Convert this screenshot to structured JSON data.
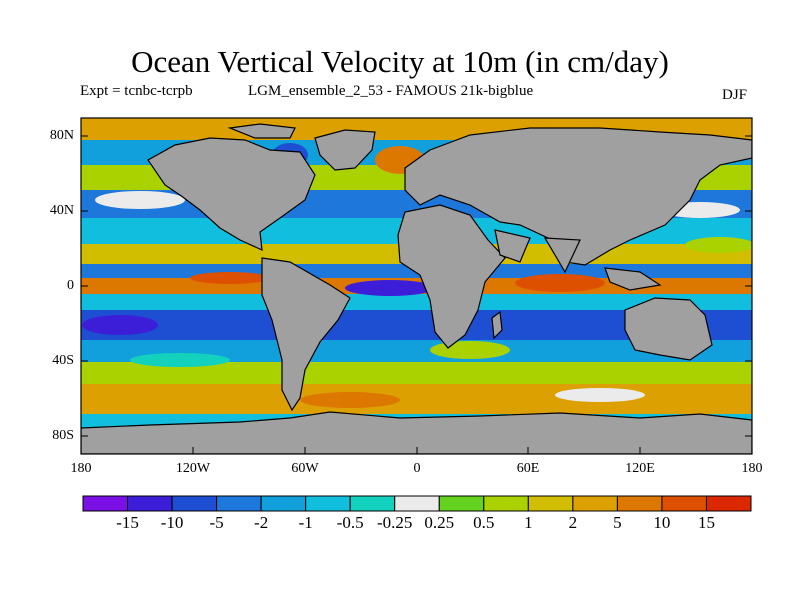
{
  "figure": {
    "title": "Ocean Vertical Velocity at 10m (in cm/day)",
    "expt": "Expt = tcnbc-tcrpb",
    "experiment_name": "LGM_ensemble_2_53 - FAMOUS 21k-bigblue",
    "season": "DJF"
  },
  "map": {
    "land_color": "#a0a0a0",
    "lat_ticks": [
      "80N",
      "40N",
      "0",
      "40S",
      "80S"
    ],
    "lon_ticks": [
      "180",
      "120W",
      "60W",
      "0",
      "60E",
      "120E",
      "180"
    ]
  },
  "colorbar": {
    "labels": [
      "-15",
      "-10",
      "-5",
      "-2",
      "-1",
      "-0.5",
      "-0.25",
      "0.25",
      "0.5",
      "1",
      "2",
      "5",
      "10",
      "15"
    ],
    "colors": [
      "#7a10e6",
      "#3c1ed8",
      "#1e4fd2",
      "#1e78dc",
      "#12a0dc",
      "#12bede",
      "#12d2be",
      "#ebebeb",
      "#64d21e",
      "#aad200",
      "#d2be00",
      "#dca000",
      "#dc7800",
      "#dc5000",
      "#dc2800"
    ]
  }
}
